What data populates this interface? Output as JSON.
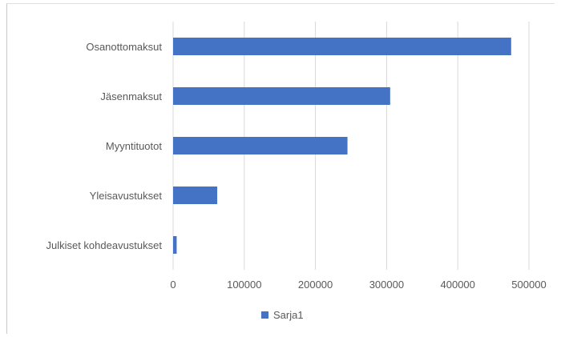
{
  "chart_data": {
    "type": "bar",
    "orientation": "horizontal",
    "categories": [
      "Osanottomaksut",
      "Jäsenmaksut",
      "Myyntituotot",
      "Yleisavustukset",
      "Julkiset kohdeavustukset"
    ],
    "series": [
      {
        "name": "Sarja1",
        "values": [
          475000,
          305000,
          245000,
          62000,
          5000
        ],
        "color": "#4472c4"
      }
    ],
    "xlim": [
      0,
      500000
    ],
    "xticks": [
      "0",
      "100000",
      "200000",
      "300000",
      "400000",
      "500000"
    ],
    "grid": true,
    "legend_position": "bottom"
  },
  "legend": {
    "label": "Sarja1"
  },
  "colors": {
    "bar": "#4472c4",
    "grid": "#d9d9d9"
  }
}
